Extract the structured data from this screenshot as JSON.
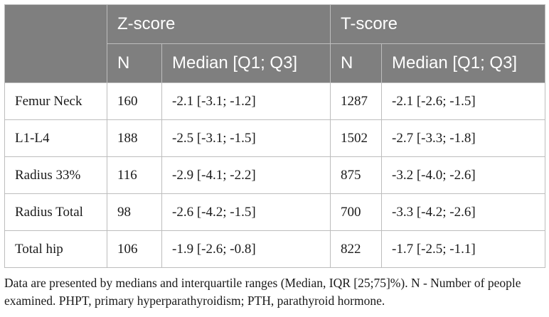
{
  "table": {
    "groups": [
      "Z-score",
      "T-score"
    ],
    "subheaders": [
      "N",
      "Median [Q1; Q3]",
      "N",
      "Median [Q1; Q3]"
    ],
    "rows": [
      {
        "site": "Femur Neck",
        "z_n": "160",
        "z_median": "-2.1 [-3.1; -1.2]",
        "t_n": "1287",
        "t_median": "-2.1 [-2.6; -1.5]"
      },
      {
        "site": "L1-L4",
        "z_n": "188",
        "z_median": "-2.5 [-3.1; -1.5]",
        "t_n": "1502",
        "t_median": "-2.7 [-3.3; -1.8]"
      },
      {
        "site": "Radius 33%",
        "z_n": "116",
        "z_median": "-2.9 [-4.1; -2.2]",
        "t_n": "875",
        "t_median": "-3.2 [-4.0; -2.6]"
      },
      {
        "site": "Radius Total",
        "z_n": "98",
        "z_median": "-2.6 [-4.2; -1.5]",
        "t_n": "700",
        "t_median": "-3.3 [-4.2; -2.6]"
      },
      {
        "site": "Total hip",
        "z_n": "106",
        "z_median": "-1.9 [-2.6; -0.8]",
        "t_n": "822",
        "t_median": "-1.7 [-2.5; -1.1]"
      }
    ]
  },
  "footnote": "Data are presented by medians and interquartile ranges (Median, IQR [25;75]%). N - Number of people examined. PHPT, primary hyperparathyroidism; PTH, parathyroid hormone.",
  "colors": {
    "header_bg": "#7f7f7f",
    "header_text": "#ffffff",
    "border": "#bdbdbd"
  }
}
